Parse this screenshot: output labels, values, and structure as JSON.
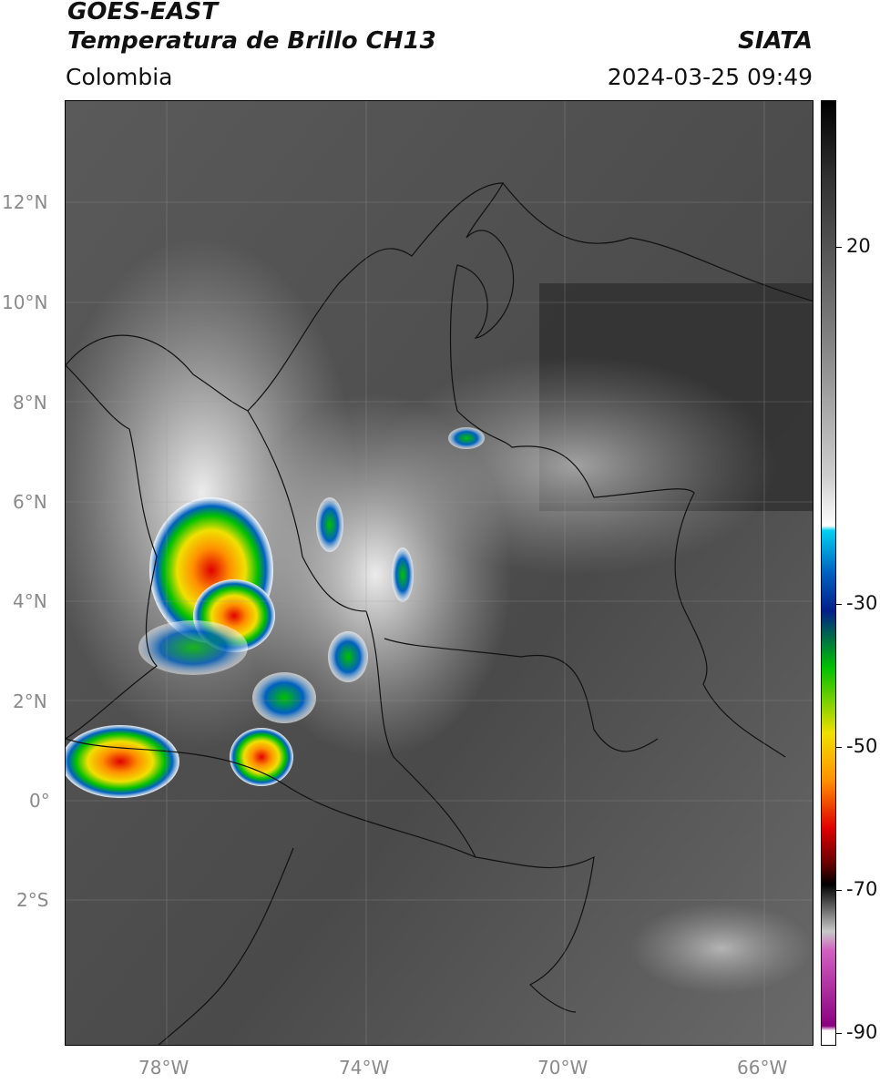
{
  "header": {
    "title_line1": "GOES-EAST",
    "title_line2": "Temperatura de Brillo CH13",
    "subtitle": "Colombia",
    "source": "SIATA",
    "timestamp": "2024-03-25 09:49"
  },
  "map": {
    "lat_labels": [
      "12°N",
      "10°N",
      "8°N",
      "6°N",
      "4°N",
      "2°N",
      "0°",
      "2°S"
    ],
    "lon_labels": [
      "78°W",
      "74°W",
      "70°W",
      "66°W"
    ]
  },
  "colorbar": {
    "labels": [
      "20",
      "-30",
      "-50",
      "-70",
      "-90"
    ],
    "colors": [
      "#ffffff",
      "#e0e0e0",
      "#a0a0a0",
      "#606060",
      "#202020",
      "#00d0f0",
      "#0060c0",
      "#00208a",
      "#00c000",
      "#f0e000",
      "#ff9000",
      "#e00000",
      "#600000",
      "#000000",
      "#d060c0",
      "#8a0080"
    ]
  }
}
